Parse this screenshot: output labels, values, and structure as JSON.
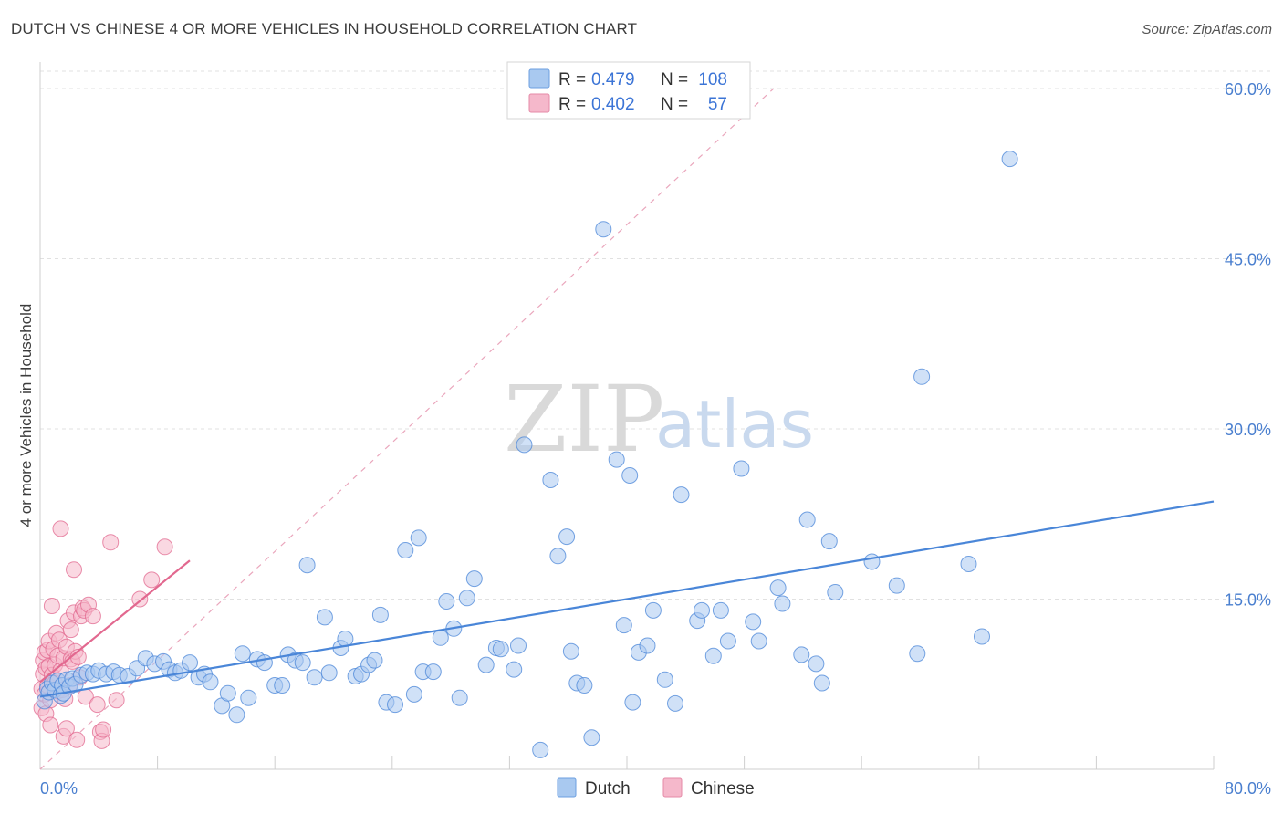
{
  "header": {
    "title": "DUTCH VS CHINESE 4 OR MORE VEHICLES IN HOUSEHOLD CORRELATION CHART",
    "source": "Source: ZipAtlas.com"
  },
  "watermark": {
    "zip": "ZIP",
    "atlas": "atlas"
  },
  "legend": {
    "rows": [
      {
        "r_label": "R =",
        "r_value": "0.479",
        "n_label": "N =",
        "n_value": "108",
        "color": "#a9c9f0"
      },
      {
        "r_label": "R =",
        "r_value": "0.402",
        "n_label": "N =",
        "n_value": "57",
        "color": "#f5b8cb"
      }
    ]
  },
  "bottom_legend": {
    "dutch": "Dutch",
    "chinese": "Chinese"
  },
  "chart_data": {
    "type": "scatter",
    "title": "DUTCH VS CHINESE 4 OR MORE VEHICLES IN HOUSEHOLD CORRELATION CHART",
    "xlabel": "",
    "ylabel": "4 or more Vehicles in Household",
    "xlim": [
      0,
      80
    ],
    "ylim": [
      0,
      60
    ],
    "x_tick_labels": [
      "0.0%",
      "80.0%"
    ],
    "y_tick_labels": [
      {
        "value": 15,
        "label": "15.0%"
      },
      {
        "value": 30,
        "label": "30.0%"
      },
      {
        "value": 45,
        "label": "45.0%"
      },
      {
        "value": 60,
        "label": "60.0%"
      }
    ],
    "grid": true,
    "series": [
      {
        "name": "Dutch",
        "color": "#4a86d8",
        "fill": "#a9c9f0",
        "r": 0.479,
        "n": 108,
        "trend": {
          "x0": 0,
          "y0": 6.4,
          "x1": 80,
          "y1": 23.6
        },
        "points": [
          [
            0.3,
            6.0
          ],
          [
            0.5,
            7.1
          ],
          [
            0.6,
            6.8
          ],
          [
            0.8,
            7.6
          ],
          [
            1.0,
            7.0
          ],
          [
            1.2,
            7.8
          ],
          [
            1.4,
            6.5
          ],
          [
            1.5,
            7.4
          ],
          [
            1.6,
            6.7
          ],
          [
            1.8,
            7.9
          ],
          [
            2.0,
            7.3
          ],
          [
            2.2,
            8.0
          ],
          [
            2.4,
            7.5
          ],
          [
            2.8,
            8.3
          ],
          [
            3.2,
            8.5
          ],
          [
            3.6,
            8.4
          ],
          [
            4.0,
            8.7
          ],
          [
            4.5,
            8.4
          ],
          [
            5.0,
            8.6
          ],
          [
            5.4,
            8.3
          ],
          [
            6.0,
            8.2
          ],
          [
            6.6,
            8.9
          ],
          [
            7.2,
            9.8
          ],
          [
            7.8,
            9.3
          ],
          [
            8.4,
            9.5
          ],
          [
            8.8,
            8.8
          ],
          [
            9.2,
            8.5
          ],
          [
            9.6,
            8.7
          ],
          [
            10.2,
            9.4
          ],
          [
            10.8,
            8.1
          ],
          [
            11.2,
            8.4
          ],
          [
            11.6,
            7.7
          ],
          [
            12.4,
            5.6
          ],
          [
            12.8,
            6.7
          ],
          [
            13.4,
            4.8
          ],
          [
            13.8,
            10.2
          ],
          [
            14.2,
            6.3
          ],
          [
            14.8,
            9.7
          ],
          [
            15.3,
            9.4
          ],
          [
            16.0,
            7.4
          ],
          [
            16.5,
            7.4
          ],
          [
            16.9,
            10.1
          ],
          [
            17.4,
            9.6
          ],
          [
            17.9,
            9.4
          ],
          [
            18.2,
            18.0
          ],
          [
            18.7,
            8.1
          ],
          [
            19.4,
            13.4
          ],
          [
            19.7,
            8.5
          ],
          [
            20.5,
            10.7
          ],
          [
            20.8,
            11.5
          ],
          [
            21.5,
            8.2
          ],
          [
            21.9,
            8.4
          ],
          [
            22.4,
            9.2
          ],
          [
            22.8,
            9.6
          ],
          [
            23.2,
            13.6
          ],
          [
            23.6,
            5.9
          ],
          [
            24.2,
            5.7
          ],
          [
            24.9,
            19.3
          ],
          [
            25.5,
            6.6
          ],
          [
            25.8,
            20.4
          ],
          [
            26.1,
            8.6
          ],
          [
            26.8,
            8.6
          ],
          [
            27.3,
            11.6
          ],
          [
            27.7,
            14.8
          ],
          [
            28.2,
            12.4
          ],
          [
            28.6,
            6.3
          ],
          [
            29.1,
            15.1
          ],
          [
            29.6,
            16.8
          ],
          [
            30.4,
            9.2
          ],
          [
            31.1,
            10.7
          ],
          [
            31.4,
            10.6
          ],
          [
            32.3,
            8.8
          ],
          [
            32.6,
            10.9
          ],
          [
            33.0,
            28.6
          ],
          [
            34.1,
            1.7
          ],
          [
            34.8,
            25.5
          ],
          [
            35.3,
            18.8
          ],
          [
            35.9,
            20.5
          ],
          [
            36.2,
            10.4
          ],
          [
            36.6,
            7.6
          ],
          [
            37.1,
            7.4
          ],
          [
            37.6,
            2.8
          ],
          [
            38.4,
            47.6
          ],
          [
            39.3,
            27.3
          ],
          [
            39.8,
            12.7
          ],
          [
            40.2,
            25.9
          ],
          [
            40.4,
            5.9
          ],
          [
            40.8,
            10.3
          ],
          [
            41.4,
            10.9
          ],
          [
            41.8,
            14.0
          ],
          [
            42.6,
            7.9
          ],
          [
            43.3,
            5.8
          ],
          [
            43.7,
            24.2
          ],
          [
            44.8,
            13.1
          ],
          [
            45.1,
            14.0
          ],
          [
            45.9,
            10.0
          ],
          [
            46.4,
            14.0
          ],
          [
            46.9,
            11.3
          ],
          [
            47.8,
            26.5
          ],
          [
            48.6,
            13.0
          ],
          [
            49.0,
            11.3
          ],
          [
            50.3,
            16.0
          ],
          [
            50.6,
            14.6
          ],
          [
            51.9,
            10.1
          ],
          [
            52.3,
            22.0
          ],
          [
            52.9,
            9.3
          ],
          [
            53.3,
            7.6
          ],
          [
            53.8,
            20.1
          ],
          [
            54.2,
            15.6
          ],
          [
            56.7,
            18.3
          ],
          [
            58.4,
            16.2
          ],
          [
            59.8,
            10.2
          ],
          [
            60.1,
            34.6
          ],
          [
            63.3,
            18.1
          ],
          [
            64.2,
            11.7
          ],
          [
            66.1,
            53.8
          ]
        ]
      },
      {
        "name": "Chinese",
        "color": "#e2688f",
        "fill": "#f5b8cb",
        "r": 0.402,
        "n": 57,
        "trend": {
          "x0": 0,
          "y0": 7.7,
          "x1": 10.2,
          "y1": 18.4
        },
        "points": [
          [
            0.1,
            5.4
          ],
          [
            0.1,
            7.1
          ],
          [
            0.2,
            8.4
          ],
          [
            0.2,
            9.6
          ],
          [
            0.3,
            10.3
          ],
          [
            0.3,
            6.6
          ],
          [
            0.4,
            4.9
          ],
          [
            0.4,
            8.9
          ],
          [
            0.5,
            7.4
          ],
          [
            0.5,
            10.5
          ],
          [
            0.6,
            9.1
          ],
          [
            0.6,
            11.3
          ],
          [
            0.7,
            6.1
          ],
          [
            0.7,
            3.9
          ],
          [
            0.8,
            8.3
          ],
          [
            0.8,
            14.4
          ],
          [
            0.9,
            10.6
          ],
          [
            1.0,
            9.2
          ],
          [
            1.0,
            7.6
          ],
          [
            1.1,
            12.0
          ],
          [
            1.2,
            10.0
          ],
          [
            1.2,
            6.9
          ],
          [
            1.3,
            11.4
          ],
          [
            1.4,
            8.7
          ],
          [
            1.4,
            21.2
          ],
          [
            1.5,
            7.0
          ],
          [
            1.6,
            9.8
          ],
          [
            1.6,
            2.9
          ],
          [
            1.7,
            6.2
          ],
          [
            1.8,
            10.8
          ],
          [
            1.8,
            3.6
          ],
          [
            1.9,
            13.1
          ],
          [
            2.0,
            7.4
          ],
          [
            2.1,
            9.7
          ],
          [
            2.1,
            12.3
          ],
          [
            2.2,
            9.5
          ],
          [
            2.3,
            13.8
          ],
          [
            2.3,
            17.6
          ],
          [
            2.4,
            10.4
          ],
          [
            2.5,
            2.6
          ],
          [
            2.6,
            9.9
          ],
          [
            2.7,
            8.1
          ],
          [
            2.8,
            13.5
          ],
          [
            2.9,
            14.2
          ],
          [
            3.0,
            14.0
          ],
          [
            3.1,
            6.4
          ],
          [
            3.3,
            14.5
          ],
          [
            3.6,
            13.5
          ],
          [
            3.9,
            5.7
          ],
          [
            4.1,
            3.3
          ],
          [
            4.2,
            2.5
          ],
          [
            4.3,
            3.5
          ],
          [
            4.8,
            20.0
          ],
          [
            5.2,
            6.1
          ],
          [
            6.8,
            15.0
          ],
          [
            7.6,
            16.7
          ],
          [
            8.5,
            19.6
          ]
        ]
      }
    ],
    "diagonal_reference": {
      "x0": 0,
      "y0": 0,
      "x1": 50,
      "y1": 60
    }
  }
}
